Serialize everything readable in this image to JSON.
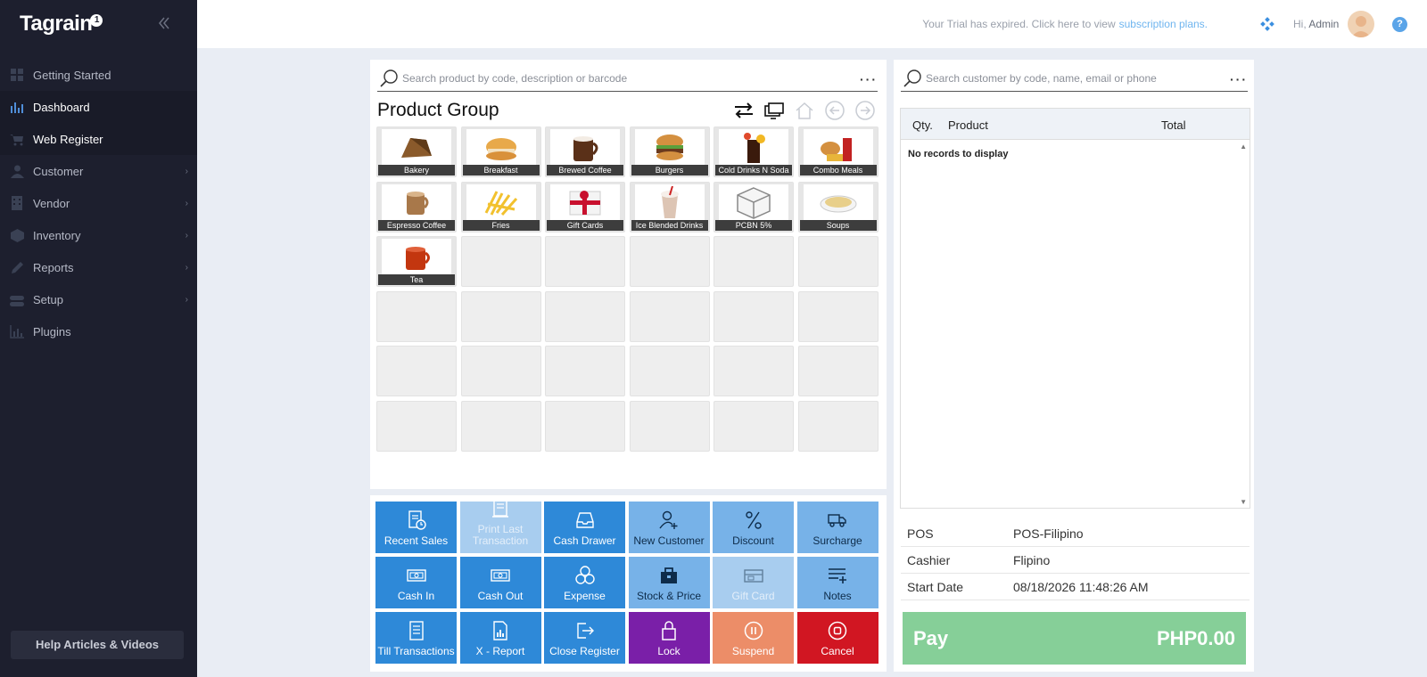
{
  "app": {
    "logo": "Tagrain",
    "logo_badge": "1"
  },
  "sidebar": {
    "items": [
      {
        "label": "Getting Started",
        "icon": "grid-icon",
        "active": false,
        "has_submenu": false
      },
      {
        "label": "Dashboard",
        "icon": "bar-chart-icon",
        "active": true,
        "has_submenu": false
      },
      {
        "label": "Web Register",
        "icon": "cart-icon",
        "active": true,
        "has_submenu": false
      },
      {
        "label": "Customer",
        "icon": "user-icon",
        "active": false,
        "has_submenu": true
      },
      {
        "label": "Vendor",
        "icon": "building-icon",
        "active": false,
        "has_submenu": true
      },
      {
        "label": "Inventory",
        "icon": "box-icon",
        "active": false,
        "has_submenu": true
      },
      {
        "label": "Reports",
        "icon": "pencil-icon",
        "active": false,
        "has_submenu": true
      },
      {
        "label": "Setup",
        "icon": "toggle-icon",
        "active": false,
        "has_submenu": true
      },
      {
        "label": "Plugins",
        "icon": "chart-icon",
        "active": false,
        "has_submenu": false
      }
    ],
    "help": "Help Articles & Videos"
  },
  "topbar": {
    "trial_text": "Your Trial has expired. Click here to view",
    "trial_link": "subscription plans.",
    "greeting": "Hi,",
    "user": "Admin"
  },
  "products": {
    "search_placeholder": "Search product by code, description or barcode",
    "title": "Product Group",
    "groups": [
      "Bakery",
      "Breakfast",
      "Brewed Coffee",
      "Burgers",
      "Cold Drinks N Soda",
      "Combo Meals",
      "Espresso Coffee",
      "Fries",
      "Gift Cards",
      "Ice Blended Drinks",
      "PCBN 5%",
      "Soups",
      "Tea"
    ]
  },
  "actions": [
    {
      "label": "Recent Sales",
      "style": "",
      "icon": "receipt-clock-icon"
    },
    {
      "label": "Print Last Transaction",
      "style": "disabled",
      "icon": "print-receipt-icon"
    },
    {
      "label": "Cash Drawer",
      "style": "",
      "icon": "drawer-icon"
    },
    {
      "label": "New Customer",
      "style": "light",
      "icon": "add-user-icon"
    },
    {
      "label": "Discount",
      "style": "light",
      "icon": "percent-icon"
    },
    {
      "label": "Surcharge",
      "style": "light",
      "icon": "truck-icon"
    },
    {
      "label": "Cash In",
      "style": "",
      "icon": "cash-in-icon"
    },
    {
      "label": "Cash Out",
      "style": "",
      "icon": "cash-out-icon"
    },
    {
      "label": "Expense",
      "style": "",
      "icon": "coins-icon"
    },
    {
      "label": "Stock & Price",
      "style": "light",
      "icon": "bag-icon"
    },
    {
      "label": "Gift Card",
      "style": "disabled",
      "icon": "gift-card-icon"
    },
    {
      "label": "Notes",
      "style": "light",
      "icon": "notes-icon"
    },
    {
      "label": "Till Transactions",
      "style": "",
      "icon": "till-icon"
    },
    {
      "label": "X - Report",
      "style": "",
      "icon": "report-icon"
    },
    {
      "label": "Close Register",
      "style": "",
      "icon": "logout-icon"
    },
    {
      "label": "Lock",
      "style": "lock",
      "icon": "lock-icon"
    },
    {
      "label": "Suspend",
      "style": "suspend",
      "icon": "pause-icon"
    },
    {
      "label": "Cancel",
      "style": "cancel",
      "icon": "stop-icon"
    }
  ],
  "customer": {
    "search_placeholder": "Search customer by code, name, email or phone",
    "columns": {
      "qty": "Qty.",
      "product": "Product",
      "total": "Total"
    },
    "empty": "No records to display",
    "info": [
      {
        "key": "POS",
        "value": "POS-Filipino"
      },
      {
        "key": "Cashier",
        "value": "Flipino"
      },
      {
        "key": "Start Date",
        "value": "08/18/2026 11:48:26 AM"
      }
    ],
    "pay_label": "Pay",
    "pay_amount": "PHP0.00"
  },
  "colors": {
    "accent": "#2e89d8",
    "sidebar": "#1d1f2e",
    "pay": "#86cf98",
    "cancel": "#d11622",
    "lock": "#7a1fa8",
    "suspend": "#ec8d68"
  }
}
